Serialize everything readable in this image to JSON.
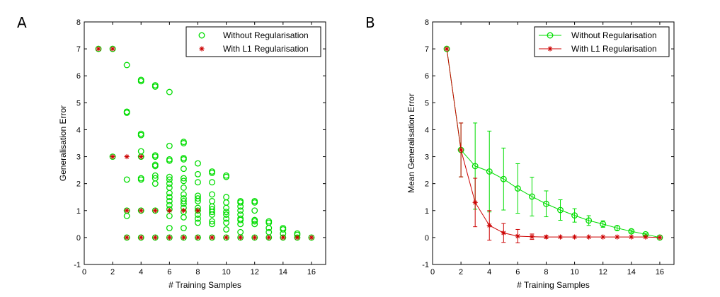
{
  "panels": [
    {
      "label": "A"
    },
    {
      "label": "B"
    }
  ],
  "colors": {
    "without": "#00dd00",
    "with_l1": "#cc0000"
  },
  "chart_data": [
    {
      "type": "scatter",
      "panel": "A",
      "title": "",
      "xlabel": "# Training Samples",
      "ylabel": "Generalisation Error",
      "xlim": [
        0,
        17
      ],
      "ylim": [
        -1,
        8
      ],
      "xticks": [
        0,
        2,
        4,
        6,
        8,
        10,
        12,
        14,
        16
      ],
      "yticks": [
        -1,
        0,
        1,
        2,
        3,
        4,
        5,
        6,
        7,
        8
      ],
      "legend_position": "top-right",
      "series": [
        {
          "name": "Without Regularisation",
          "marker": "circle",
          "points": [
            [
              1,
              7
            ],
            [
              2,
              7
            ],
            [
              2,
              3
            ],
            [
              3,
              6.4
            ],
            [
              3,
              4.67
            ],
            [
              3,
              4.63
            ],
            [
              3,
              2.15
            ],
            [
              3,
              1.0
            ],
            [
              3,
              0.8
            ],
            [
              3,
              0
            ],
            [
              4,
              5.85
            ],
            [
              4,
              5.8
            ],
            [
              4,
              3.85
            ],
            [
              4,
              3.8
            ],
            [
              4,
              3.2
            ],
            [
              4,
              3.0
            ],
            [
              4,
              2.2
            ],
            [
              4,
              2.15
            ],
            [
              4,
              1.0
            ],
            [
              4,
              0
            ],
            [
              5,
              5.65
            ],
            [
              5,
              5.6
            ],
            [
              5,
              3.05
            ],
            [
              5,
              3.0
            ],
            [
              5,
              2.7
            ],
            [
              5,
              2.65
            ],
            [
              5,
              2.3
            ],
            [
              5,
              2.2
            ],
            [
              5,
              2.0
            ],
            [
              5,
              1.0
            ],
            [
              5,
              0
            ],
            [
              6,
              5.4
            ],
            [
              6,
              3.4
            ],
            [
              6,
              2.9
            ],
            [
              6,
              2.85
            ],
            [
              6,
              2.25
            ],
            [
              6,
              2.15
            ],
            [
              6,
              2.0
            ],
            [
              6,
              1.85
            ],
            [
              6,
              1.65
            ],
            [
              6,
              1.5
            ],
            [
              6,
              1.35
            ],
            [
              6,
              1.2
            ],
            [
              6,
              1.05
            ],
            [
              6,
              0.8
            ],
            [
              6,
              0.35
            ],
            [
              6,
              0
            ],
            [
              7,
              3.55
            ],
            [
              7,
              3.5
            ],
            [
              7,
              2.95
            ],
            [
              7,
              2.9
            ],
            [
              7,
              2.55
            ],
            [
              7,
              2.2
            ],
            [
              7,
              2.1
            ],
            [
              7,
              1.85
            ],
            [
              7,
              1.6
            ],
            [
              7,
              1.45
            ],
            [
              7,
              1.35
            ],
            [
              7,
              1.25
            ],
            [
              7,
              1.1
            ],
            [
              7,
              0.95
            ],
            [
              7,
              0.75
            ],
            [
              7,
              0.35
            ],
            [
              7,
              0
            ],
            [
              8,
              2.75
            ],
            [
              8,
              2.35
            ],
            [
              8,
              2.05
            ],
            [
              8,
              1.55
            ],
            [
              8,
              1.45
            ],
            [
              8,
              1.35
            ],
            [
              8,
              1.1
            ],
            [
              8,
              1.0
            ],
            [
              8,
              0.85
            ],
            [
              8,
              0.7
            ],
            [
              8,
              0.55
            ],
            [
              8,
              0
            ],
            [
              9,
              2.45
            ],
            [
              9,
              2.4
            ],
            [
              9,
              2.05
            ],
            [
              9,
              1.6
            ],
            [
              9,
              1.35
            ],
            [
              9,
              1.15
            ],
            [
              9,
              1.05
            ],
            [
              9,
              0.95
            ],
            [
              9,
              0.85
            ],
            [
              9,
              0.6
            ],
            [
              9,
              0.5
            ],
            [
              9,
              0
            ],
            [
              10,
              2.3
            ],
            [
              10,
              2.25
            ],
            [
              10,
              1.5
            ],
            [
              10,
              1.3
            ],
            [
              10,
              1.1
            ],
            [
              10,
              0.95
            ],
            [
              10,
              0.85
            ],
            [
              10,
              0.7
            ],
            [
              10,
              0.55
            ],
            [
              10,
              0.3
            ],
            [
              10,
              0
            ],
            [
              11,
              1.35
            ],
            [
              11,
              1.3
            ],
            [
              11,
              1.15
            ],
            [
              11,
              1.0
            ],
            [
              11,
              0.85
            ],
            [
              11,
              0.7
            ],
            [
              11,
              0.65
            ],
            [
              11,
              0.5
            ],
            [
              11,
              0.2
            ],
            [
              11,
              0
            ],
            [
              12,
              1.35
            ],
            [
              12,
              1.3
            ],
            [
              12,
              1.0
            ],
            [
              12,
              0.65
            ],
            [
              12,
              0.6
            ],
            [
              12,
              0.5
            ],
            [
              12,
              0
            ],
            [
              13,
              0.6
            ],
            [
              13,
              0.55
            ],
            [
              13,
              0.35
            ],
            [
              13,
              0.2
            ],
            [
              13,
              0
            ],
            [
              14,
              0.35
            ],
            [
              14,
              0.3
            ],
            [
              14,
              0.15
            ],
            [
              14,
              0
            ],
            [
              15,
              0.15
            ],
            [
              15,
              0.1
            ],
            [
              15,
              0
            ],
            [
              16,
              0
            ]
          ]
        },
        {
          "name": "With L1 Regularisation",
          "marker": "star",
          "points": [
            [
              1,
              7
            ],
            [
              2,
              7
            ],
            [
              2,
              3
            ],
            [
              3,
              3
            ],
            [
              3,
              1
            ],
            [
              3,
              0
            ],
            [
              4,
              3
            ],
            [
              4,
              1
            ],
            [
              4,
              0
            ],
            [
              5,
              1
            ],
            [
              5,
              0
            ],
            [
              6,
              1
            ],
            [
              6,
              0
            ],
            [
              7,
              1
            ],
            [
              7,
              0
            ],
            [
              8,
              1
            ],
            [
              8,
              0
            ],
            [
              9,
              0
            ],
            [
              10,
              0
            ],
            [
              11,
              0
            ],
            [
              12,
              0
            ],
            [
              13,
              0
            ],
            [
              14,
              0
            ],
            [
              15,
              0
            ],
            [
              16,
              0
            ]
          ]
        }
      ]
    },
    {
      "type": "line",
      "panel": "B",
      "title": "",
      "xlabel": "# Training Samples",
      "ylabel": "Mean Generalisation Error",
      "xlim": [
        0,
        17
      ],
      "ylim": [
        -1,
        8
      ],
      "xticks": [
        0,
        2,
        4,
        6,
        8,
        10,
        12,
        14,
        16
      ],
      "yticks": [
        -1,
        0,
        1,
        2,
        3,
        4,
        5,
        6,
        7,
        8
      ],
      "legend_position": "top-right",
      "x": [
        1,
        2,
        3,
        4,
        5,
        6,
        7,
        8,
        9,
        10,
        11,
        12,
        13,
        14,
        15,
        16
      ],
      "series": [
        {
          "name": "Without Regularisation",
          "marker": "circle",
          "values": [
            7.0,
            3.25,
            2.65,
            2.45,
            2.17,
            1.82,
            1.52,
            1.25,
            1.02,
            0.82,
            0.63,
            0.5,
            0.35,
            0.23,
            0.12,
            0.0
          ],
          "errors": [
            0.0,
            1.0,
            1.6,
            1.5,
            1.15,
            0.92,
            0.72,
            0.48,
            0.38,
            0.25,
            0.18,
            0.12,
            0.08,
            0.05,
            0.03,
            0.0
          ]
        },
        {
          "name": "With L1 Regularisation",
          "marker": "star",
          "values": [
            7.0,
            3.25,
            1.3,
            0.45,
            0.17,
            0.05,
            0.03,
            0.02,
            0.02,
            0.02,
            0.02,
            0.02,
            0.02,
            0.02,
            0.02,
            0.0
          ],
          "errors": [
            0.0,
            1.0,
            0.9,
            0.55,
            0.35,
            0.25,
            0.1,
            0.05,
            0.0,
            0.0,
            0.0,
            0.0,
            0.0,
            0.0,
            0.0,
            0.0
          ]
        }
      ]
    }
  ]
}
